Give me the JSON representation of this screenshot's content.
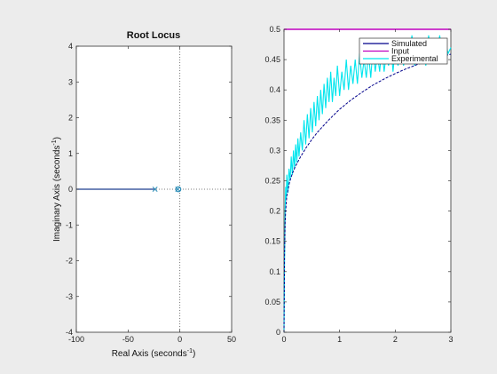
{
  "chart_data": [
    {
      "type": "line",
      "title": "Root Locus",
      "xlabel": "Real Axis (seconds",
      "xlabel_sup": "-1",
      "xlabel_end": ")",
      "ylabel": "Imaginary Axis (seconds",
      "ylabel_sup": "-1",
      "ylabel_end": ")",
      "xlim": [
        -100,
        50
      ],
      "ylim": [
        -4,
        4
      ],
      "xticks": [
        -100,
        -50,
        0,
        50
      ],
      "xtick_labels": [
        "-100",
        "-50",
        "0",
        "50"
      ],
      "yticks": [
        -4,
        -3,
        -2,
        -1,
        0,
        1,
        2,
        3,
        4
      ],
      "ytick_labels": [
        "-4",
        "-3",
        "-2",
        "-1",
        "0",
        "1",
        "2",
        "3",
        "4"
      ],
      "grid": false,
      "locus": {
        "x": [
          -100,
          -24
        ],
        "y": [
          0,
          0
        ],
        "color": "#1f3f8f"
      },
      "poles": [
        {
          "x": -24,
          "y": 0
        },
        {
          "x": -2,
          "y": 0
        }
      ],
      "zeros": [
        {
          "x": -1.5,
          "y": 0
        }
      ],
      "marker_color": "#2f8fb8",
      "dotted_lines": [
        {
          "orientation": "vertical",
          "value": 0
        },
        {
          "orientation": "horizontal",
          "value": 0
        }
      ]
    },
    {
      "type": "line",
      "xlim": [
        0,
        3
      ],
      "ylim": [
        0,
        0.5
      ],
      "xticks": [
        0,
        1,
        2,
        3
      ],
      "xtick_labels": [
        "0",
        "1",
        "2",
        "3"
      ],
      "yticks": [
        0,
        0.05,
        0.1,
        0.15,
        0.2,
        0.25,
        0.3,
        0.35,
        0.4,
        0.45,
        0.5
      ],
      "ytick_labels": [
        "0",
        "0.05",
        "0.1",
        "0.15",
        "0.2",
        "0.25",
        "0.3",
        "0.35",
        "0.4",
        "0.45",
        "0.5"
      ],
      "grid": false,
      "legend_position": "top-right",
      "series": [
        {
          "name": "Simulated",
          "color": "#00008b",
          "x": [
            0,
            0.01,
            0.02,
            0.03,
            0.05,
            0.1,
            0.15,
            0.2,
            0.3,
            0.4,
            0.5,
            0.6,
            0.7,
            0.8,
            0.9,
            1.0,
            1.2,
            1.4,
            1.6,
            1.8,
            2.0,
            2.2,
            2.4,
            2.6,
            2.8,
            3.0
          ],
          "y": [
            0,
            0.13,
            0.18,
            0.2,
            0.225,
            0.248,
            0.262,
            0.273,
            0.29,
            0.305,
            0.318,
            0.33,
            0.34,
            0.35,
            0.359,
            0.368,
            0.383,
            0.396,
            0.408,
            0.418,
            0.427,
            0.435,
            0.442,
            0.448,
            0.454,
            0.459
          ]
        },
        {
          "name": "Input",
          "color": "#c000c0",
          "x": [
            0,
            3
          ],
          "y": [
            0.5,
            0.5
          ]
        },
        {
          "name": "Experimental",
          "color": "#00e5ee",
          "x": [
            0,
            0.01,
            0.02,
            0.03,
            0.04,
            0.05,
            0.07,
            0.09,
            0.11,
            0.13,
            0.15,
            0.17,
            0.19,
            0.21,
            0.23,
            0.25,
            0.27,
            0.3,
            0.33,
            0.36,
            0.39,
            0.42,
            0.45,
            0.48,
            0.51,
            0.54,
            0.57,
            0.6,
            0.63,
            0.66,
            0.69,
            0.72,
            0.75,
            0.78,
            0.81,
            0.84,
            0.87,
            0.9,
            0.93,
            0.96,
            1.0,
            1.04,
            1.08,
            1.12,
            1.16,
            1.2,
            1.24,
            1.28,
            1.32,
            1.36,
            1.4,
            1.44,
            1.48,
            1.52,
            1.56,
            1.6,
            1.64,
            1.68,
            1.72,
            1.76,
            1.8,
            1.84,
            1.88,
            1.92,
            1.96,
            2.0,
            2.05,
            2.1,
            2.15,
            2.2,
            2.25,
            2.3,
            2.35,
            2.4,
            2.45,
            2.5,
            2.55,
            2.6,
            2.65,
            2.7,
            2.75,
            2.8,
            2.85,
            2.9,
            2.95,
            3.0
          ],
          "y": [
            0,
            0.12,
            0.2,
            0.24,
            0.22,
            0.26,
            0.23,
            0.27,
            0.25,
            0.29,
            0.26,
            0.3,
            0.27,
            0.31,
            0.28,
            0.32,
            0.29,
            0.33,
            0.3,
            0.35,
            0.31,
            0.36,
            0.32,
            0.37,
            0.33,
            0.38,
            0.34,
            0.39,
            0.35,
            0.4,
            0.36,
            0.41,
            0.37,
            0.42,
            0.38,
            0.43,
            0.38,
            0.42,
            0.39,
            0.44,
            0.39,
            0.43,
            0.4,
            0.45,
            0.4,
            0.44,
            0.41,
            0.45,
            0.41,
            0.46,
            0.42,
            0.45,
            0.42,
            0.46,
            0.42,
            0.47,
            0.43,
            0.46,
            0.43,
            0.47,
            0.43,
            0.46,
            0.44,
            0.48,
            0.43,
            0.47,
            0.44,
            0.48,
            0.44,
            0.47,
            0.45,
            0.49,
            0.44,
            0.48,
            0.45,
            0.48,
            0.44,
            0.49,
            0.45,
            0.47,
            0.46,
            0.49,
            0.45,
            0.48,
            0.46,
            0.47
          ]
        }
      ]
    }
  ]
}
